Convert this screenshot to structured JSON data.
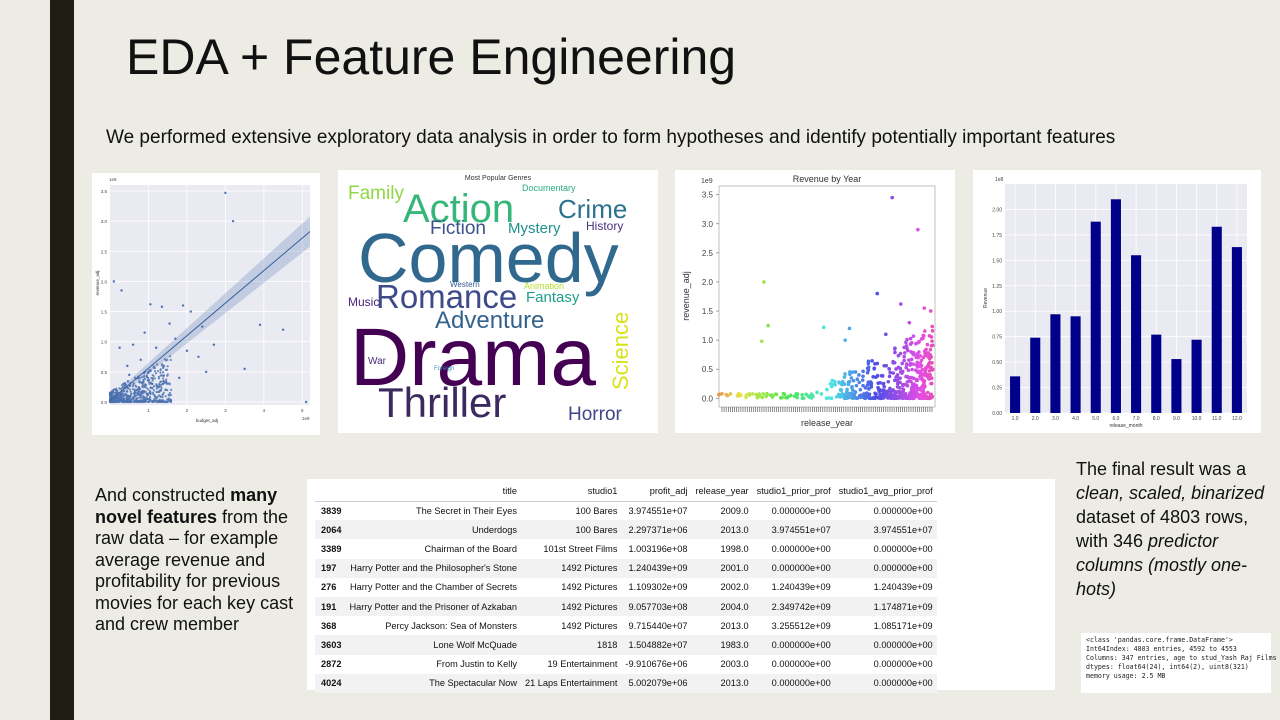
{
  "slide": {
    "title": "EDA + Feature Engineering",
    "subtitle": "We performed extensive exploratory data analysis in order to form hypotheses and identify potentially important features",
    "left_text_1": "And constructed ",
    "left_text_bold": "many novel features",
    "left_text_2": " from the raw data – for example average revenue and profitability for previous movies for each key cast and crew member",
    "right_text_1": "The final result was a ",
    "right_text_italic_1": "clean, scaled, binarized",
    "right_text_2": " dataset of 4803 rows, with 346 ",
    "right_text_italic_2": "predictor columns (mostly one-hots)",
    "df_info": "<class 'pandas.core.frame.DataFrame'>\nInt64Index: 4803 entries, 4592 to 4553\nColumns: 347 entries, age to stud_Yash Raj Films\ndtypes: float64(24), int64(2), uint8(321)\nmemory usage: 2.5 MB"
  },
  "table": {
    "columns": [
      "",
      "title",
      "studio1",
      "profit_adj",
      "release_year",
      "studio1_prior_prof",
      "studio1_avg_prior_prof"
    ],
    "rows": [
      [
        "3839",
        "The Secret in Their Eyes",
        "100 Bares",
        "3.974551e+07",
        "2009.0",
        "0.000000e+00",
        "0.000000e+00"
      ],
      [
        "2064",
        "Underdogs",
        "100 Bares",
        "2.297371e+06",
        "2013.0",
        "3.974551e+07",
        "3.974551e+07"
      ],
      [
        "3389",
        "Chairman of the Board",
        "101st Street Films",
        "1.003196e+08",
        "1998.0",
        "0.000000e+00",
        "0.000000e+00"
      ],
      [
        "197",
        "Harry Potter and the Philosopher's Stone",
        "1492 Pictures",
        "1.240439e+09",
        "2001.0",
        "0.000000e+00",
        "0.000000e+00"
      ],
      [
        "276",
        "Harry Potter and the Chamber of Secrets",
        "1492 Pictures",
        "1.109302e+09",
        "2002.0",
        "1.240439e+09",
        "1.240439e+09"
      ],
      [
        "191",
        "Harry Potter and the Prisoner of Azkaban",
        "1492 Pictures",
        "9.057703e+08",
        "2004.0",
        "2.349742e+09",
        "1.174871e+09"
      ],
      [
        "368",
        "Percy Jackson: Sea of Monsters",
        "1492 Pictures",
        "9.715440e+07",
        "2013.0",
        "3.255512e+09",
        "1.085171e+09"
      ],
      [
        "3603",
        "Lone Wolf McQuade",
        "1818",
        "1.504882e+07",
        "1983.0",
        "0.000000e+00",
        "0.000000e+00"
      ],
      [
        "2872",
        "From Justin to Kelly",
        "19 Entertainment",
        "-9.910676e+06",
        "2003.0",
        "0.000000e+00",
        "0.000000e+00"
      ],
      [
        "4024",
        "The Spectacular Now",
        "21 Laps Entertainment",
        "5.002079e+06",
        "2013.0",
        "0.000000e+00",
        "0.000000e+00"
      ]
    ]
  },
  "chart_data": [
    {
      "type": "scatter",
      "title": "",
      "xlabel": "budget_adj",
      "ylabel": "revenue_adj",
      "x_exponent": "1e9",
      "y_exponent": "1e9",
      "xlim": [
        0,
        5.2
      ],
      "ylim": [
        -0.05,
        3.6
      ],
      "xticks": [
        1,
        2,
        3,
        4,
        5
      ],
      "yticks": [
        0.0,
        0.5,
        1.0,
        1.5,
        2.0,
        2.5,
        3.0,
        3.5
      ],
      "regression": {
        "intercept": 0.02,
        "slope": 0.54
      },
      "points": [
        [
          3.0,
          3.47
        ],
        [
          3.2,
          3.0
        ],
        [
          2.4,
          1.25
        ],
        [
          4.5,
          1.2
        ],
        [
          3.9,
          1.28
        ],
        [
          0.1,
          2.0
        ],
        [
          0.3,
          1.85
        ],
        [
          1.05,
          1.62
        ],
        [
          1.35,
          1.58
        ],
        [
          2.1,
          1.5
        ],
        [
          1.9,
          1.6
        ],
        [
          1.55,
          1.3
        ],
        [
          0.9,
          1.15
        ],
        [
          2.7,
          0.95
        ],
        [
          2.3,
          0.75
        ],
        [
          3.5,
          0.55
        ],
        [
          1.2,
          0.9
        ],
        [
          0.6,
          0.95
        ],
        [
          1.7,
          1.05
        ],
        [
          1.4,
          0.6
        ],
        [
          2.0,
          0.85
        ],
        [
          0.8,
          0.7
        ],
        [
          1.0,
          0.5
        ],
        [
          0.5,
          0.45
        ],
        [
          0.35,
          0.3
        ],
        [
          0.2,
          0.15
        ],
        [
          0.15,
          0.05
        ],
        [
          0.7,
          0.2
        ],
        [
          1.1,
          0.3
        ],
        [
          0.45,
          0.6
        ],
        [
          1.8,
          0.4
        ],
        [
          2.5,
          0.5
        ],
        [
          0.25,
          0.9
        ],
        [
          5.1,
          0.0
        ]
      ],
      "cluster": {
        "x_max": 1.6,
        "y_max": 0.6,
        "count": 650
      }
    },
    {
      "type": "wordcloud",
      "title": "Most Popular Genres",
      "words": [
        {
          "text": "Drama",
          "color": "#440154"
        },
        {
          "text": "Comedy",
          "color": "#31688e"
        },
        {
          "text": "Thriller",
          "color": "#3b2a5f"
        },
        {
          "text": "Action",
          "color": "#35b779"
        },
        {
          "text": "Romance",
          "color": "#3e4a89"
        },
        {
          "text": "Adventure",
          "color": "#33638d"
        },
        {
          "text": "Crime",
          "color": "#2c728e"
        },
        {
          "text": "Science",
          "color": "#d8e219"
        },
        {
          "text": "Horror",
          "color": "#414487"
        },
        {
          "text": "Family",
          "color": "#8fd744"
        },
        {
          "text": "Fiction",
          "color": "#3b528b"
        },
        {
          "text": "Mystery",
          "color": "#21908d"
        },
        {
          "text": "Fantasy",
          "color": "#1f9e89"
        },
        {
          "text": "History",
          "color": "#46327e"
        },
        {
          "text": "Documentary",
          "color": "#28ae80"
        },
        {
          "text": "Animation",
          "color": "#b5de2b"
        },
        {
          "text": "Western",
          "color": "#365c8d"
        },
        {
          "text": "Music",
          "color": "#482576"
        },
        {
          "text": "War",
          "color": "#472d7b"
        },
        {
          "text": "Foreign",
          "color": "#3e8fb0"
        }
      ]
    },
    {
      "type": "scatter",
      "title": "Revenue by Year",
      "xlabel": "release_year",
      "ylabel": "revenue_adj",
      "y_exponent": "1e9",
      "xlim": [
        1916,
        2017
      ],
      "ylim": [
        -0.15,
        3.65
      ],
      "yticks": [
        0.0,
        0.5,
        1.0,
        1.5,
        2.0,
        2.5,
        3.0,
        3.5
      ],
      "points": [
        [
          1937,
          2.0
        ],
        [
          1939,
          1.25
        ],
        [
          1936,
          0.98
        ],
        [
          1965,
          1.22
        ],
        [
          1977,
          1.2
        ],
        [
          1997,
          3.45
        ],
        [
          2009,
          2.9
        ],
        [
          1990,
          1.8
        ],
        [
          2001,
          1.62
        ],
        [
          2012,
          1.55
        ],
        [
          2015,
          1.5
        ],
        [
          1975,
          1.0
        ],
        [
          1994,
          1.1
        ],
        [
          2005,
          1.3
        ]
      ],
      "cluster": {
        "x_min": 1960,
        "x_max": 2016,
        "count": 500
      }
    },
    {
      "type": "bar",
      "title": "",
      "xlabel": "release_month",
      "ylabel": "Revenue",
      "y_exponent": "1e8",
      "categories": [
        "1.0",
        "2.0",
        "3.0",
        "4.0",
        "5.0",
        "6.0",
        "7.0",
        "8.0",
        "9.0",
        "10.0",
        "11.0",
        "12.0"
      ],
      "values": [
        0.36,
        0.74,
        0.97,
        0.95,
        1.88,
        2.1,
        1.55,
        0.77,
        0.53,
        0.72,
        1.83,
        1.63
      ],
      "ylim": [
        0,
        2.25
      ],
      "yticks": [
        0.0,
        0.25,
        0.5,
        0.75,
        1.0,
        1.25,
        1.5,
        1.75,
        2.0
      ],
      "color": "#00008b"
    }
  ]
}
